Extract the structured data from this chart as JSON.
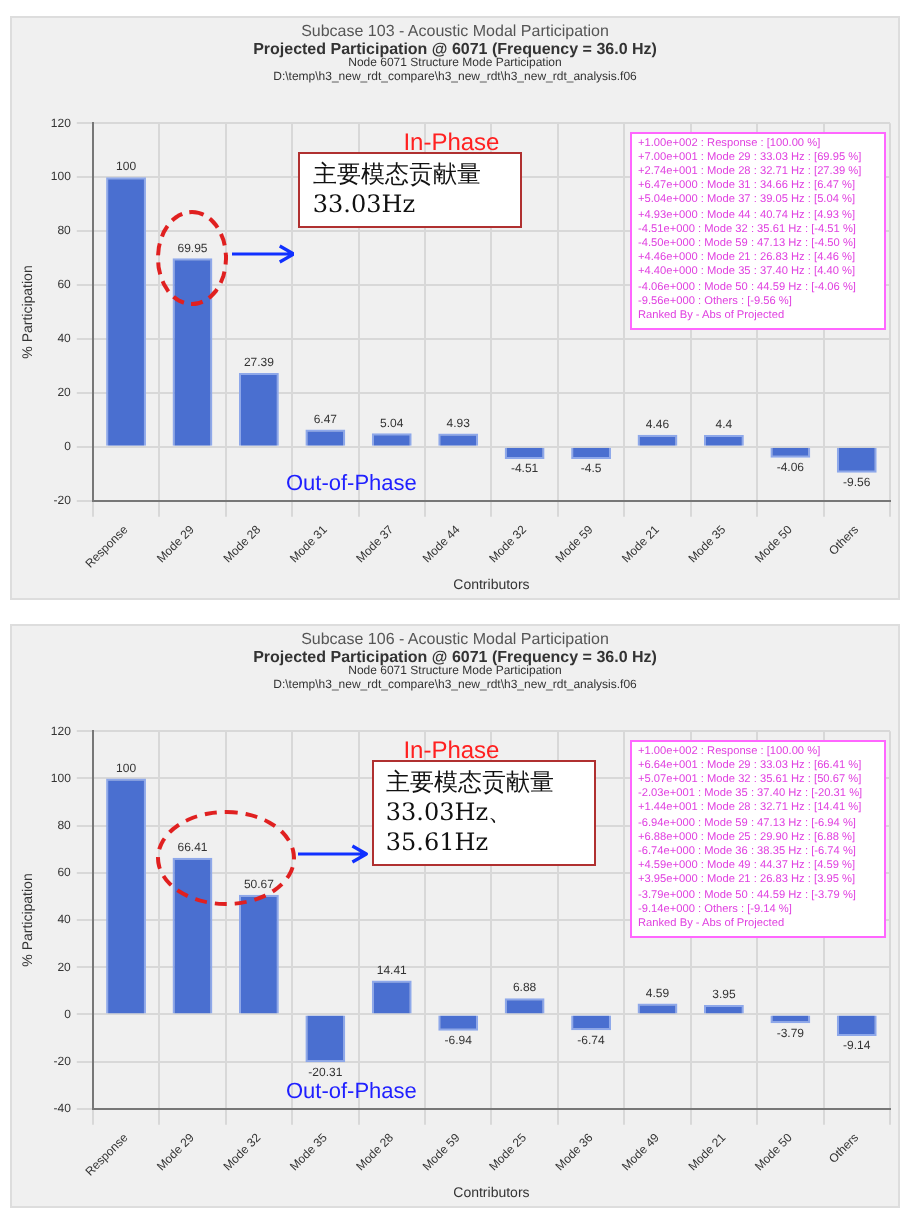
{
  "chart_data": [
    {
      "type": "bar",
      "title": "Subcase 103 - Acoustic Modal Participation",
      "subtitle": "Projected Participation @ 6071 (Frequency = 36.0 Hz)",
      "xlabel": "Contributors",
      "ylabel": "% Participation",
      "categories": [
        "Response",
        "Mode 29",
        "Mode 28",
        "Mode 31",
        "Mode 37",
        "Mode 44",
        "Mode 32",
        "Mode 59",
        "Mode 21",
        "Mode 35",
        "Mode 50",
        "Others"
      ],
      "values": [
        100,
        69.95,
        27.39,
        6.47,
        5.04,
        4.93,
        -4.51,
        -4.5,
        4.46,
        4.4,
        -4.06,
        -9.56
      ],
      "color": "#4a6fd0",
      "ylim": [
        -20,
        120
      ],
      "yticks": [
        -20,
        0,
        20,
        40,
        60,
        80,
        100,
        120
      ],
      "grid": true,
      "data_labels": true,
      "annotations": [
        "Node 6071 Structure Mode Participation",
        "D:\\temp\\h3_new_rdt_compare\\h3_new_rdt\\h3_new_rdt_analysis.f06",
        "In-Phase",
        "Out-of-Phase",
        "主要模态贡献量33.03Hz",
        "+1.00e+002 : Response : [100.00 %]",
        "+7.00e+001 : Mode 29 : 33.03 Hz : [69.95 %]",
        "+2.74e+001 : Mode 28 : 32.71 Hz : [27.39 %]",
        "+6.47e+000 : Mode 31 : 34.66 Hz : [6.47 %]",
        "+5.04e+000 : Mode 37 : 39.05 Hz : [5.04 %]",
        "+4.93e+000 : Mode 44 : 40.74 Hz : [4.93 %]",
        "-4.51e+000 : Mode 32 : 35.61 Hz : [-4.51 %]",
        "-4.50e+000 : Mode 59 : 47.13 Hz : [-4.50 %]",
        "+4.46e+000 : Mode 21 : 26.83 Hz : [4.46 %]",
        "+4.40e+000 : Mode 35 : 37.40 Hz : [4.40 %]",
        "-4.06e+000 : Mode 50 : 44.59 Hz : [-4.06 %]",
        "-9.56e+000 : Others : [-9.56 %]",
        "Ranked By - Abs of Projected"
      ]
    },
    {
      "type": "bar",
      "title": "Subcase 106 - Acoustic Modal Participation",
      "subtitle": "Projected Participation @ 6071 (Frequency = 36.0 Hz)",
      "xlabel": "Contributors",
      "ylabel": "% Participation",
      "categories": [
        "Response",
        "Mode 29",
        "Mode 32",
        "Mode 35",
        "Mode 28",
        "Mode 59",
        "Mode 25",
        "Mode 36",
        "Mode 49",
        "Mode 21",
        "Mode 50",
        "Others"
      ],
      "values": [
        100,
        66.41,
        50.67,
        -20.31,
        14.41,
        -6.94,
        6.88,
        -6.74,
        4.59,
        3.95,
        -3.79,
        -9.14
      ],
      "color": "#4a6fd0",
      "ylim": [
        -40,
        120
      ],
      "yticks": [
        -40,
        -20,
        0,
        20,
        40,
        60,
        80,
        100,
        120
      ],
      "grid": true,
      "data_labels": true,
      "annotations": [
        "Node 6071 Structure Mode Participation",
        "D:\\temp\\h3_new_rdt_compare\\h3_new_rdt\\h3_new_rdt_analysis.f06",
        "In-Phase",
        "Out-of-Phase",
        "主要模态贡献量33.03Hz、35.61Hz",
        "+1.00e+002 : Response : [100.00 %]",
        "+6.64e+001 : Mode 29 : 33.03 Hz : [66.41 %]",
        "+5.07e+001 : Mode 32 : 35.61 Hz : [50.67 %]",
        "-2.03e+001 : Mode 35 : 37.40 Hz : [-20.31 %]",
        "+1.44e+001 : Mode 28 : 32.71 Hz : [14.41 %]",
        "-6.94e+000 : Mode 59 : 47.13 Hz : [-6.94 %]",
        "+6.88e+000 : Mode 25 : 29.90 Hz : [6.88 %]",
        "-6.74e+000 : Mode 36 : 38.35 Hz : [-6.74 %]",
        "+4.59e+000 : Mode 49 : 44.37 Hz : [4.59 %]",
        "+3.95e+000 : Mode 21 : 26.83 Hz : [3.95 %]",
        "-3.79e+000 : Mode 50 : 44.59 Hz : [-3.79 %]",
        "-9.14e+000 : Others : [-9.14 %]",
        "Ranked By - Abs of Projected"
      ]
    }
  ]
}
